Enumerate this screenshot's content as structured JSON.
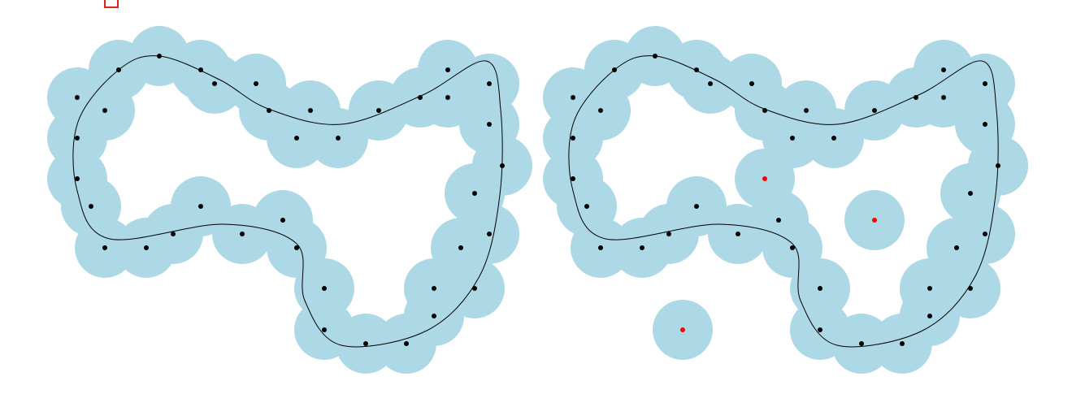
{
  "colors": {
    "background": "#ffffff",
    "ball": "#add8e6",
    "sample_point": "#000000",
    "outlier_point": "#ff0000",
    "curve": "#000000",
    "corner_mark": "#e0241b"
  },
  "panels": [
    {
      "name": "panel-left",
      "points": [
        [
          196,
          69
        ],
        [
          146,
          86
        ],
        [
          247,
          86
        ],
        [
          95,
          120
        ],
        [
          264,
          103
        ],
        [
          315,
          103
        ],
        [
          129,
          136
        ],
        [
          331,
          136
        ],
        [
          382,
          136
        ],
        [
          466,
          136
        ],
        [
          517,
          120
        ],
        [
          551,
          120
        ],
        [
          551,
          86
        ],
        [
          602,
          103
        ],
        [
          95,
          170
        ],
        [
          365,
          170
        ],
        [
          416,
          170
        ],
        [
          602,
          153
        ],
        [
          618,
          204
        ],
        [
          95,
          220
        ],
        [
          112,
          254
        ],
        [
          247,
          254
        ],
        [
          348,
          271
        ],
        [
          213,
          288
        ],
        [
          298,
          288
        ],
        [
          584,
          238
        ],
        [
          602,
          288
        ],
        [
          129,
          305
        ],
        [
          180,
          305
        ],
        [
          365,
          305
        ],
        [
          567,
          305
        ],
        [
          399,
          355
        ],
        [
          534,
          355
        ],
        [
          584,
          355
        ],
        [
          534,
          389
        ],
        [
          399,
          406
        ],
        [
          450,
          423
        ],
        [
          500,
          423
        ]
      ],
      "outliers": [],
      "curve": [
        [
          196,
          69
        ],
        [
          270,
          98
        ],
        [
          330,
          134
        ],
        [
          420,
          153
        ],
        [
          520,
          117
        ],
        [
          598,
          75
        ],
        [
          616,
          135
        ],
        [
          615,
          240
        ],
        [
          590,
          340
        ],
        [
          525,
          407
        ],
        [
          420,
          425
        ],
        [
          375,
          370
        ],
        [
          365,
          300
        ],
        [
          275,
          276
        ],
        [
          135,
          294
        ],
        [
          95,
          235
        ],
        [
          96,
          150
        ],
        [
          146,
          86
        ],
        [
          196,
          69
        ]
      ]
    },
    {
      "name": "panel-right",
      "points": [
        [
          806,
          69
        ],
        [
          756,
          86
        ],
        [
          857,
          86
        ],
        [
          705,
          120
        ],
        [
          874,
          103
        ],
        [
          925,
          103
        ],
        [
          739,
          136
        ],
        [
          941,
          136
        ],
        [
          992,
          136
        ],
        [
          1076,
          136
        ],
        [
          1127,
          120
        ],
        [
          1161,
          120
        ],
        [
          1161,
          86
        ],
        [
          1212,
          103
        ],
        [
          705,
          170
        ],
        [
          975,
          170
        ],
        [
          1026,
          170
        ],
        [
          1212,
          153
        ],
        [
          1228,
          204
        ],
        [
          705,
          220
        ],
        [
          722,
          254
        ],
        [
          857,
          254
        ],
        [
          958,
          271
        ],
        [
          823,
          288
        ],
        [
          908,
          288
        ],
        [
          1194,
          238
        ],
        [
          1212,
          288
        ],
        [
          739,
          305
        ],
        [
          790,
          305
        ],
        [
          975,
          305
        ],
        [
          1177,
          305
        ],
        [
          1009,
          355
        ],
        [
          1144,
          355
        ],
        [
          1194,
          355
        ],
        [
          1144,
          389
        ],
        [
          1009,
          406
        ],
        [
          1060,
          423
        ],
        [
          1110,
          423
        ]
      ],
      "outliers": [
        [
          941,
          220
        ],
        [
          1076,
          271
        ],
        [
          840,
          406
        ]
      ],
      "curve": [
        [
          806,
          69
        ],
        [
          880,
          98
        ],
        [
          940,
          134
        ],
        [
          1030,
          153
        ],
        [
          1130,
          117
        ],
        [
          1208,
          75
        ],
        [
          1226,
          135
        ],
        [
          1225,
          240
        ],
        [
          1200,
          340
        ],
        [
          1135,
          407
        ],
        [
          1030,
          425
        ],
        [
          985,
          370
        ],
        [
          975,
          300
        ],
        [
          885,
          276
        ],
        [
          745,
          294
        ],
        [
          705,
          235
        ],
        [
          706,
          150
        ],
        [
          756,
          86
        ],
        [
          806,
          69
        ]
      ]
    }
  ]
}
